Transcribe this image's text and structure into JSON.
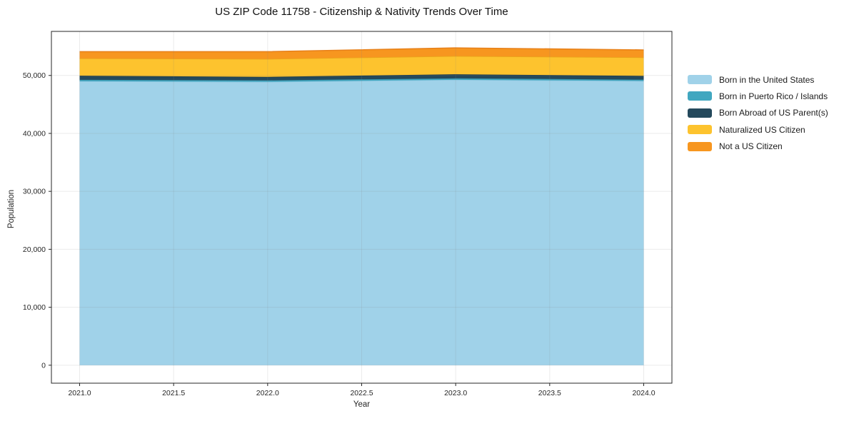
{
  "chart_data": {
    "type": "area",
    "stacked": true,
    "title": "US ZIP Code 11758 - Citizenship & Nativity Trends Over Time",
    "xlabel": "Year",
    "ylabel": "Population",
    "x": [
      2021,
      2022,
      2023,
      2024
    ],
    "series": [
      {
        "name": "Born in the United States",
        "color": "#a0d2e9",
        "edge": "#8ec6e0",
        "values": [
          49000,
          48900,
          49250,
          49050
        ]
      },
      {
        "name": "Born in Puerto Rico / Islands",
        "color": "#41a7c0",
        "edge": "#3a96ad",
        "values": [
          250,
          250,
          250,
          220
        ]
      },
      {
        "name": "Born Abroad of US Parent(s)",
        "color": "#24495c",
        "edge": "#1c3a4a",
        "values": [
          700,
          600,
          700,
          650
        ]
      },
      {
        "name": "Naturalized US Citizen",
        "color": "#fdc32e",
        "edge": "#eaa41b",
        "values": [
          3000,
          3100,
          3150,
          3200
        ]
      },
      {
        "name": "Not a US Citizen",
        "color": "#f7961f",
        "edge": "#e8811a",
        "values": [
          1150,
          1250,
          1400,
          1280
        ]
      }
    ],
    "xlim": [
      2020.85,
      2024.15
    ],
    "ylim": [
      -3100,
      57600
    ],
    "xticks": [
      2021.0,
      2021.5,
      2022.0,
      2022.5,
      2023.0,
      2023.5,
      2024.0
    ],
    "xtick_labels": [
      "2021.0",
      "2021.5",
      "2022.0",
      "2022.5",
      "2023.0",
      "2023.5",
      "2024.0"
    ],
    "yticks": [
      0,
      10000,
      20000,
      30000,
      40000,
      50000
    ],
    "ytick_labels": [
      "0",
      "10,000",
      "20,000",
      "30,000",
      "40,000",
      "50,000"
    ],
    "grid": true,
    "legend_position": "right"
  },
  "colors": {
    "spine": "#262626",
    "grid": "rgba(130,130,130,0.16)",
    "tick_label": "#262626",
    "title": "#111111",
    "background": "#ffffff"
  }
}
